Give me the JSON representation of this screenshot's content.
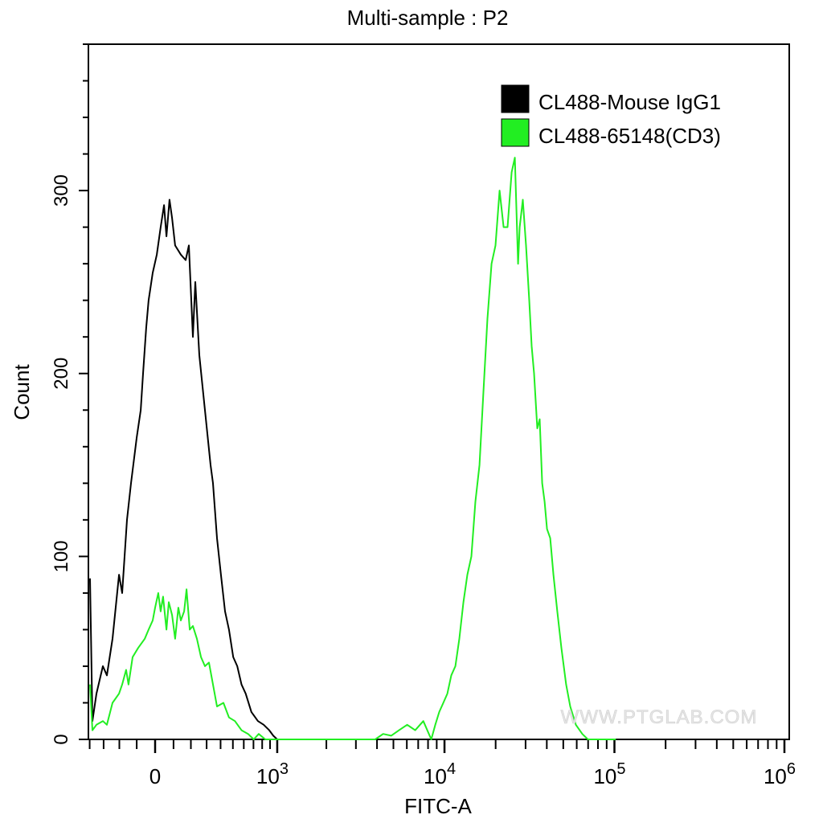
{
  "chart_data": {
    "type": "line",
    "title": "Multi-sample : P2",
    "xlabel": "FITC-A",
    "ylabel": "Count",
    "x_scale": "biexponential",
    "xlim": [
      -400,
      1000000
    ],
    "ylim": [
      0,
      380
    ],
    "x_tick_labels": [
      {
        "value": 0,
        "base": "0",
        "exp": ""
      },
      {
        "value": 1000,
        "base": "10",
        "exp": "3"
      },
      {
        "value": 10000,
        "base": "10",
        "exp": "4"
      },
      {
        "value": 100000,
        "base": "10",
        "exp": "5"
      },
      {
        "value": 1000000,
        "base": "10",
        "exp": "6"
      }
    ],
    "y_ticks": [
      0,
      100,
      200,
      300
    ],
    "grid": false,
    "legend_position": "top-right",
    "watermark": "WWW.PTGLAB.COM",
    "series": [
      {
        "name": "CL488-Mouse IgG1",
        "color": "#000000",
        "x": [
          -397,
          -379,
          -350,
          -305,
          -278,
          -242,
          -202,
          -183,
          -155,
          -132,
          -100,
          -78,
          -65,
          -48,
          -35,
          -13,
          9,
          30,
          48,
          61,
          78,
          92,
          109,
          141,
          169,
          188,
          212,
          227,
          252,
          289,
          327,
          344,
          373,
          403,
          435,
          467,
          503,
          539,
          578,
          619,
          678,
          750,
          818,
          889,
          943,
          1000
        ],
        "y": [
          88,
          10,
          25,
          40,
          35,
          55,
          90,
          80,
          120,
          140,
          165,
          180,
          200,
          225,
          240,
          255,
          265,
          280,
          292,
          275,
          295,
          285,
          270,
          265,
          262,
          270,
          220,
          250,
          210,
          180,
          150,
          140,
          110,
          90,
          70,
          60,
          45,
          40,
          30,
          25,
          15,
          10,
          8,
          5,
          2,
          0
        ]
      },
      {
        "name": "CL488-65148(CD3)",
        "color": "#22ee22",
        "x": [
          -397,
          -379,
          -350,
          -305,
          -278,
          -242,
          -202,
          -183,
          -160,
          -146,
          -123,
          -92,
          -56,
          -35,
          -13,
          0,
          17,
          30,
          43,
          61,
          74,
          92,
          109,
          127,
          141,
          160,
          174,
          193,
          212,
          237,
          263,
          289,
          316,
          344,
          373,
          422,
          467,
          518,
          578,
          643,
          703,
          759,
          838,
          1000,
          1820,
          3900,
          4350,
          4850,
          5400,
          6030,
          6720,
          7500,
          8360,
          8830,
          9310,
          9840,
          10400,
          10970,
          11590,
          12230,
          12920,
          13640,
          14390,
          15210,
          16070,
          16950,
          17910,
          18920,
          19950,
          21090,
          22280,
          23500,
          24830,
          25940,
          27100,
          27690,
          28910,
          30200,
          31550,
          32580,
          33650,
          35160,
          36310,
          37580,
          38810,
          40090,
          41880,
          43750,
          46130,
          48750,
          52000,
          54950,
          59290,
          64710,
          69820,
          102000
        ],
        "y": [
          30,
          5,
          8,
          10,
          8,
          20,
          25,
          30,
          38,
          30,
          45,
          50,
          55,
          60,
          65,
          72,
          80,
          70,
          78,
          60,
          75,
          68,
          55,
          72,
          65,
          70,
          82,
          60,
          62,
          55,
          45,
          40,
          42,
          30,
          18,
          20,
          12,
          10,
          5,
          3,
          0,
          3,
          0,
          0,
          0,
          0,
          3,
          2,
          5,
          8,
          5,
          10,
          0,
          8,
          15,
          20,
          25,
          35,
          40,
          55,
          75,
          90,
          100,
          130,
          150,
          190,
          230,
          260,
          270,
          300,
          280,
          280,
          310,
          318,
          260,
          280,
          295,
          270,
          240,
          215,
          200,
          170,
          175,
          140,
          130,
          115,
          110,
          90,
          70,
          50,
          30,
          18,
          8,
          3,
          0,
          0
        ]
      }
    ]
  }
}
